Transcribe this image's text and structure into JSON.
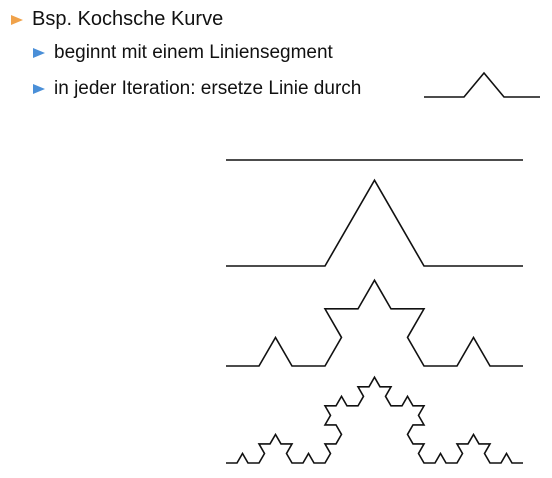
{
  "bullets": {
    "main": {
      "text": "Bsp. Kochsche Kurve",
      "icon": "orange-triangle-bullet-icon",
      "color": "#f0a24a"
    },
    "sub": [
      {
        "text": "beginnt mit einem Liniensegment",
        "icon": "blue-triangle-bullet-icon",
        "color": "#4a8fd8"
      },
      {
        "text": "in jeder Iteration: ersetze Linie durch",
        "icon": "blue-triangle-bullet-icon",
        "color": "#4a8fd8"
      }
    ]
  },
  "koch_curves": {
    "iterations": [
      0,
      1,
      2,
      3
    ],
    "line_color": "#111111"
  }
}
